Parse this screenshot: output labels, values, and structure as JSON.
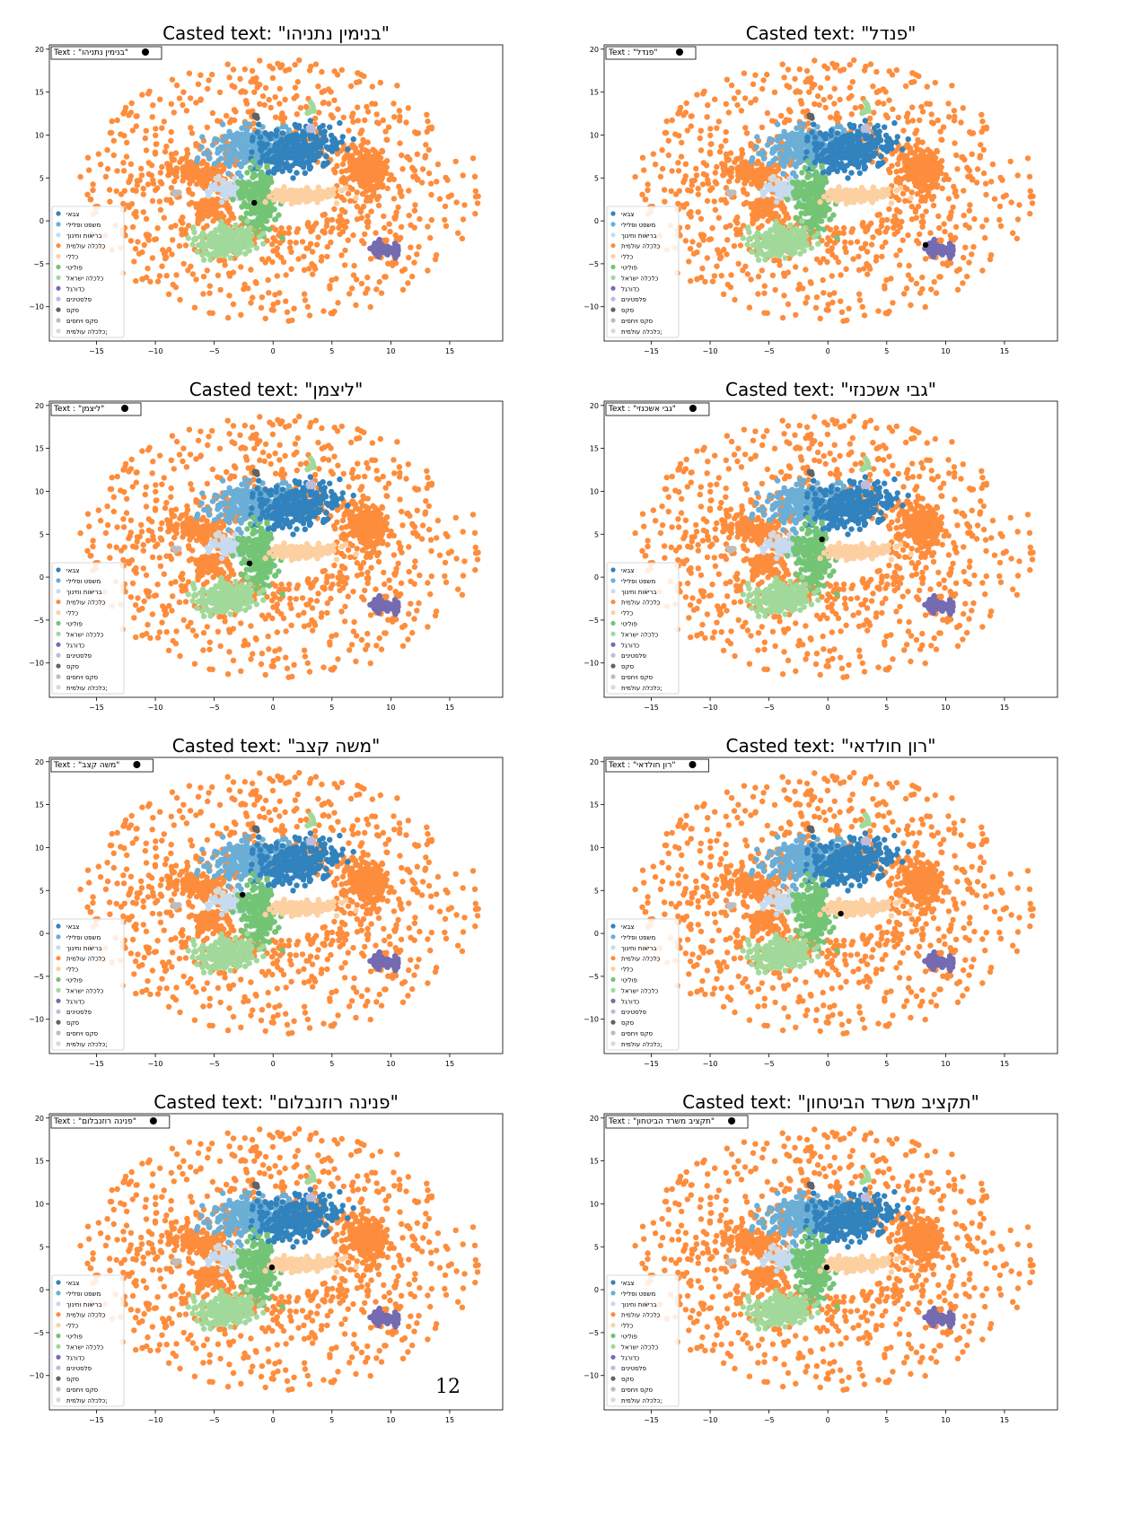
{
  "page_number": "12",
  "title_prefix": "Casted text: ",
  "legend": {
    "marker_prefix": "Text : ",
    "categories": [
      {
        "label": "צבאי",
        "color": "#3182bd"
      },
      {
        "label": "משפט ופלילי",
        "color": "#6baed6"
      },
      {
        "label": "בריאות וחינוך",
        "color": "#c6dbef"
      },
      {
        "label": "כלכלה עולמית",
        "color": "#fd8d3c"
      },
      {
        "label": "כללי",
        "color": "#fdd0a2"
      },
      {
        "label": "פוליטי",
        "color": "#74c476"
      },
      {
        "label": "כלכלה ישראל",
        "color": "#a1d99b"
      },
      {
        "label": "כדורגל",
        "color": "#756bb1"
      },
      {
        "label": "פלסטינים",
        "color": "#bcbddc"
      },
      {
        "label": "סקס",
        "color": "#636363"
      },
      {
        "label": "סקס ויחסים",
        "color": "#bdbdbd"
      },
      {
        "label": "כלכלה עולמית;",
        "color": "#d9d9d9"
      }
    ]
  },
  "chart_data": [
    {
      "type": "scatter",
      "title": "Casted text: \"בנימין נתניהו\"",
      "legend_text": "\"בנימין נתניהו\"",
      "highlight": {
        "x": -1.6,
        "y": 2.1
      },
      "xlim": [
        -19,
        19.5
      ],
      "ylim": [
        -14,
        20.5
      ],
      "xticks": [
        -15,
        -10,
        -5,
        0,
        5,
        10,
        15
      ],
      "yticks": [
        -10,
        -5,
        0,
        5,
        10,
        15,
        20
      ],
      "clusters": "projected text embeddings (same for all panels)"
    },
    {
      "type": "scatter",
      "title": "Casted text: \"פנדל\"",
      "legend_text": "\"פנדל\"",
      "highlight": {
        "x": 8.3,
        "y": -2.8
      },
      "xlim": [
        -19,
        19.5
      ],
      "ylim": [
        -14,
        20.5
      ],
      "xticks": [
        -15,
        -10,
        -5,
        0,
        5,
        10,
        15
      ],
      "yticks": [
        -10,
        -5,
        0,
        5,
        10,
        15,
        20
      ]
    },
    {
      "type": "scatter",
      "title": "Casted text: \"ליצמן\"",
      "legend_text": "\"ליצמן\"",
      "highlight": {
        "x": -2.0,
        "y": 1.6
      },
      "xlim": [
        -19,
        19.5
      ],
      "ylim": [
        -14,
        20.5
      ],
      "xticks": [
        -15,
        -10,
        -5,
        0,
        5,
        10,
        15
      ],
      "yticks": [
        -10,
        -5,
        0,
        5,
        10,
        15,
        20
      ]
    },
    {
      "type": "scatter",
      "title": "Casted text: \"גבי אשכנזי\"",
      "legend_text": "\"גבי אשכנזי\"",
      "highlight": {
        "x": -0.5,
        "y": 4.4
      },
      "xlim": [
        -19,
        19.5
      ],
      "ylim": [
        -14,
        20.5
      ],
      "xticks": [
        -15,
        -10,
        -5,
        0,
        5,
        10,
        15
      ],
      "yticks": [
        -10,
        -5,
        0,
        5,
        10,
        15,
        20
      ]
    },
    {
      "type": "scatter",
      "title": "Casted text: \"משה קצב\"",
      "legend_text": "\"משה קצב\"",
      "highlight": {
        "x": -2.6,
        "y": 4.5
      },
      "xlim": [
        -19,
        19.5
      ],
      "ylim": [
        -14,
        20.5
      ],
      "xticks": [
        -15,
        -10,
        -5,
        0,
        5,
        10,
        15
      ],
      "yticks": [
        -10,
        -5,
        0,
        5,
        10,
        15,
        20
      ]
    },
    {
      "type": "scatter",
      "title": "Casted text: \"רון חולדאי\"",
      "legend_text": "\"רון חולדאי\"",
      "highlight": {
        "x": 1.1,
        "y": 2.3
      },
      "xlim": [
        -19,
        19.5
      ],
      "ylim": [
        -14,
        20.5
      ],
      "xticks": [
        -15,
        -10,
        -5,
        0,
        5,
        10,
        15
      ],
      "yticks": [
        -10,
        -5,
        0,
        5,
        10,
        15,
        20
      ]
    },
    {
      "type": "scatter",
      "title": "Casted text: \"פנינה רוזנבלום\"",
      "legend_text": "\"פנינה רוזנבלום\"",
      "highlight": {
        "x": -0.1,
        "y": 2.6
      },
      "xlim": [
        -19,
        19.5
      ],
      "ylim": [
        -14,
        20.5
      ],
      "xticks": [
        -15,
        -10,
        -5,
        0,
        5,
        10,
        15
      ],
      "yticks": [
        -10,
        -5,
        0,
        5,
        10,
        15,
        20
      ]
    },
    {
      "type": "scatter",
      "title": "Casted text: \"תקציב משרד הביטחון\"",
      "legend_text": "\"תקציב משרד הביטחון\"",
      "highlight": {
        "x": -0.1,
        "y": 2.6
      },
      "xlim": [
        -19,
        19.5
      ],
      "ylim": [
        -14,
        20.5
      ],
      "xticks": [
        -15,
        -10,
        -5,
        0,
        5,
        10,
        15
      ],
      "yticks": [
        -10,
        -5,
        0,
        5,
        10,
        15,
        20
      ]
    }
  ]
}
